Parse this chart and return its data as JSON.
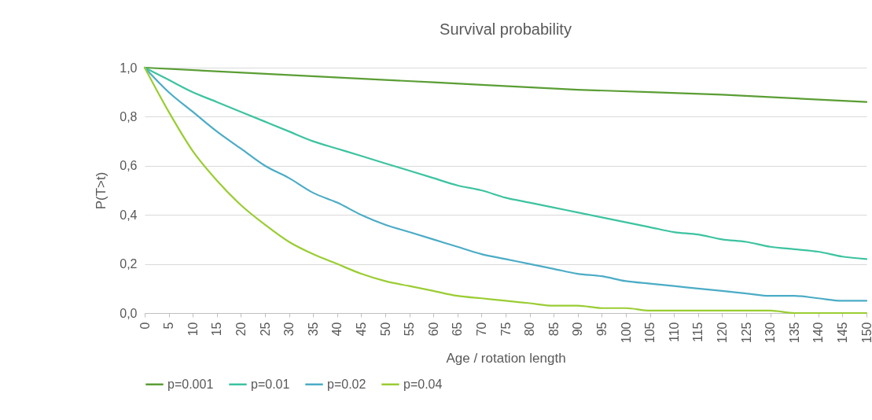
{
  "chart_data": {
    "type": "line",
    "title": "Survival probability",
    "xlabel": "Age / rotation length",
    "ylabel": "P(T>t)",
    "x": [
      0,
      5,
      10,
      15,
      20,
      25,
      30,
      35,
      40,
      45,
      50,
      55,
      60,
      65,
      70,
      75,
      80,
      85,
      90,
      95,
      100,
      105,
      110,
      115,
      120,
      125,
      130,
      135,
      140,
      145,
      150
    ],
    "series": [
      {
        "name": "p=0.001",
        "color": "#5a9e34",
        "x": [
          0,
          30,
          60,
          90,
          120,
          150
        ],
        "values": [
          1.0,
          0.97,
          0.94,
          0.91,
          0.89,
          0.86
        ]
      },
      {
        "name": "p=0.01",
        "color": "#3cc3a0",
        "values": [
          1,
          0.95,
          0.9,
          0.86,
          0.82,
          0.78,
          0.74,
          0.7,
          0.67,
          0.64,
          0.61,
          0.58,
          0.55,
          0.52,
          0.5,
          0.47,
          0.45,
          0.43,
          0.41,
          0.39,
          0.37,
          0.35,
          0.33,
          0.32,
          0.3,
          0.29,
          0.27,
          0.26,
          0.25,
          0.23,
          0.22
        ]
      },
      {
        "name": "p=0.02",
        "color": "#4bacc6",
        "values": [
          1,
          0.9,
          0.82,
          0.74,
          0.67,
          0.6,
          0.55,
          0.49,
          0.45,
          0.4,
          0.36,
          0.33,
          0.3,
          0.27,
          0.24,
          0.22,
          0.2,
          0.18,
          0.16,
          0.15,
          0.13,
          0.12,
          0.11,
          0.1,
          0.09,
          0.08,
          0.07,
          0.07,
          0.06,
          0.05,
          0.05
        ]
      },
      {
        "name": "p=0.04",
        "color": "#9acd32",
        "values": [
          1,
          0.82,
          0.66,
          0.54,
          0.44,
          0.36,
          0.29,
          0.24,
          0.2,
          0.16,
          0.13,
          0.11,
          0.09,
          0.07,
          0.06,
          0.05,
          0.04,
          0.03,
          0.03,
          0.02,
          0.02,
          0.01,
          0.01,
          0.01,
          0.01,
          0.01,
          0.01,
          0,
          0,
          0,
          0
        ]
      }
    ],
    "xlim": [
      0,
      150
    ],
    "xticks": [
      0,
      5,
      10,
      15,
      20,
      25,
      30,
      35,
      40,
      45,
      50,
      55,
      60,
      65,
      70,
      75,
      80,
      85,
      90,
      95,
      100,
      105,
      110,
      115,
      120,
      125,
      130,
      135,
      140,
      145,
      150
    ],
    "ylim": [
      0,
      1
    ],
    "yticks": [
      {
        "value": 0,
        "label": "0,0"
      },
      {
        "value": 0.2,
        "label": "0,2"
      },
      {
        "value": 0.4,
        "label": "0,4"
      },
      {
        "value": 0.6,
        "label": "0,6"
      },
      {
        "value": 0.8,
        "label": "0,8"
      },
      {
        "value": 1,
        "label": "1,0"
      }
    ],
    "grid": "y",
    "legend": "bottom",
    "marker": "none",
    "line_style": "solid"
  }
}
